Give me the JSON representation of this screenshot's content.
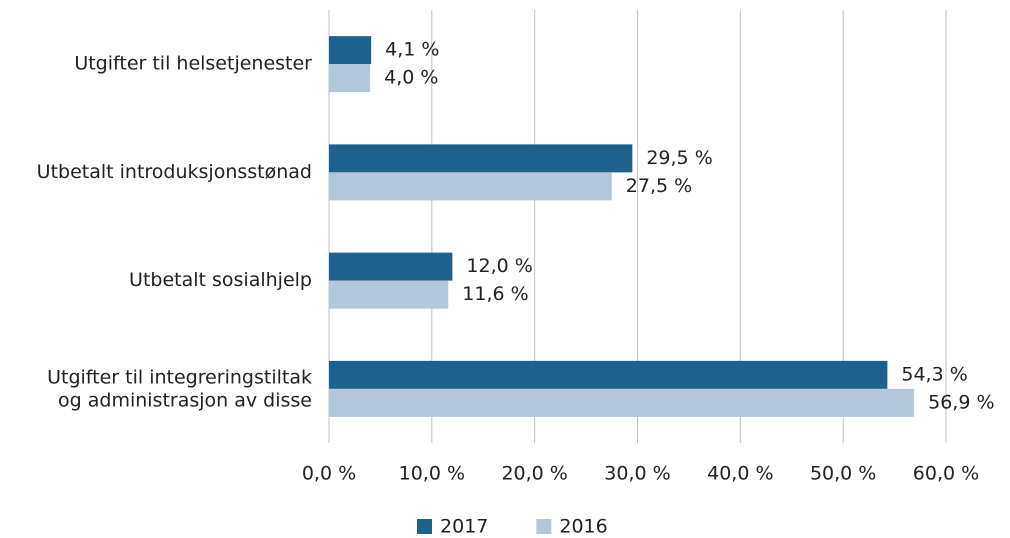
{
  "chart_data": {
    "type": "bar",
    "orientation": "horizontal",
    "categories": [
      "Utgifter til helsetjenester",
      "Utbetalt introduksjonsstønad",
      "Utbetalt sosialhjelp",
      "Utgifter til integreringstiltak\nog administrasjon av disse"
    ],
    "series": [
      {
        "name": "2017",
        "color": "#1f618d",
        "values": [
          4.1,
          29.5,
          12.0,
          54.3
        ],
        "value_labels": [
          "4,1 %",
          "29,5 %",
          "12,0 %",
          "54,3 %"
        ]
      },
      {
        "name": "2016",
        "color": "#b3c7dc",
        "values": [
          4.0,
          27.5,
          11.6,
          56.9
        ],
        "value_labels": [
          "4,0 %",
          "27,5 %",
          "11,6 %",
          "56,9 %"
        ]
      }
    ],
    "xlim": [
      0,
      60
    ],
    "xticks": [
      {
        "value": 0,
        "label": "0,0 %"
      },
      {
        "value": 10,
        "label": "10,0 %"
      },
      {
        "value": 20,
        "label": "20,0 %"
      },
      {
        "value": 30,
        "label": "30,0 %"
      },
      {
        "value": 40,
        "label": "40,0 %"
      },
      {
        "value": 50,
        "label": "50,0 %"
      },
      {
        "value": 60,
        "label": "60,0 %"
      }
    ],
    "grid": true,
    "legend": "bottom"
  }
}
